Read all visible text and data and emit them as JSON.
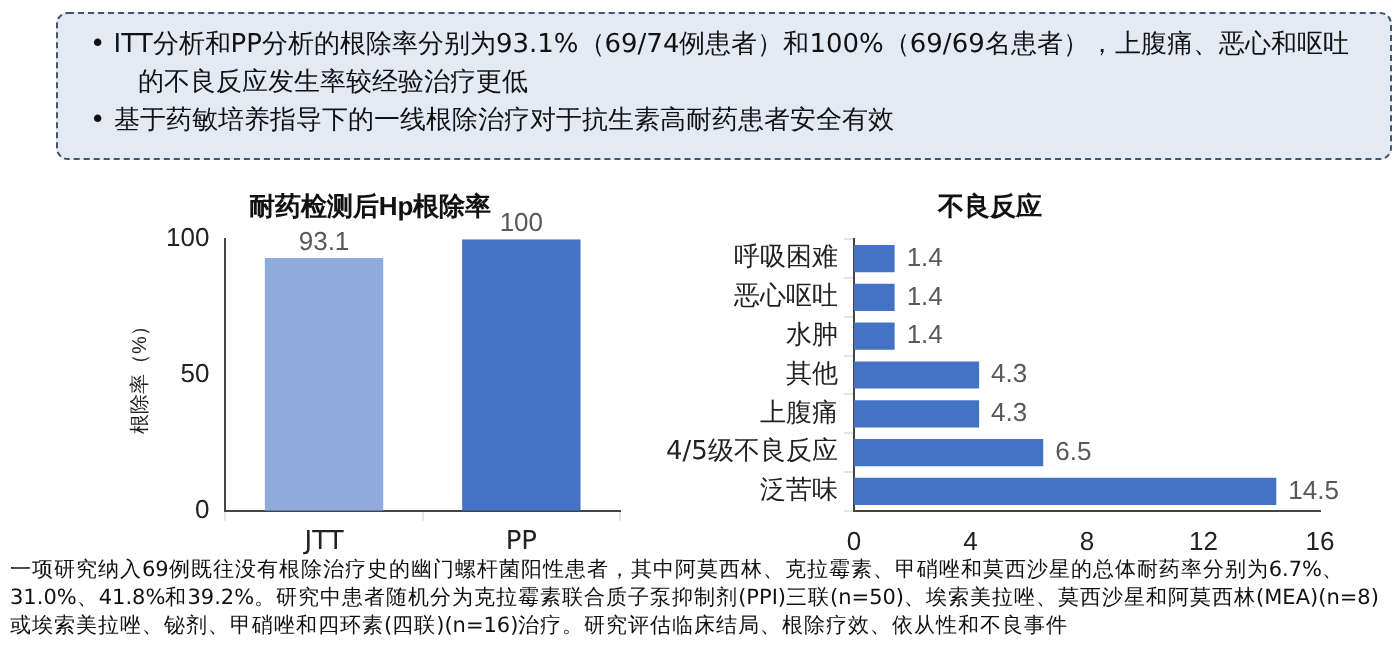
{
  "chart_data": [
    {
      "type": "bar",
      "title": "耐药检测后Hp根除率",
      "ylabel": "根除率（%）",
      "categories": [
        "JTT",
        "PP"
      ],
      "values": [
        93.1,
        100
      ],
      "colors": [
        "#8faadc",
        "#4472c4"
      ],
      "ylim": [
        0,
        100
      ],
      "yticks": [
        0,
        50,
        100
      ],
      "grid": false,
      "legend": false,
      "data_labels": true,
      "annotations": [
        "•  ITT分析和PP分析的根除率分别为93.1%（69/74例患者）和100%（69/69名患者），上腹痛、恶心和呕吐的不良反应发生率较经验治疗更低",
        "•  基于药敏培养指导下的一线根除治疗对于抗生素高耐药患者安全有效",
        "一项研究纳入69例既往没有根除治疗史的幽门螺杆菌阳性患者，其中阿莫西林、克拉霉素、甲硝唑和莫西沙星的总体耐药率分别为6.7%、31.0%、41.8%和39.2%。研究中患者随机分为克拉霉素联合质子泵抑制剂(PPI)三联(n=50)、埃索美拉唑、莫西沙星和阿莫西林(MEA)(n=8) 或埃索美拉唑、铋剂、甲硝唑和四环素(四联)(n=16)治疗。研究评估临床结局、根除疗效、依从性和不良事件"
      ]
    },
    {
      "type": "bar",
      "orientation": "horizontal",
      "title": "不良反应",
      "categories": [
        "呼吸困难",
        "恶心呕吐",
        "水肿",
        "其他",
        "上腹痛",
        "4/5级不良反应",
        "泛苦味"
      ],
      "values": [
        1.4,
        1.4,
        1.4,
        4.3,
        4.3,
        6.5,
        14.5
      ],
      "color": "#4472c4",
      "xlim": [
        0,
        16
      ],
      "xticks": [
        0,
        4,
        8,
        12,
        16
      ],
      "grid": false,
      "legend": false,
      "data_labels": true
    }
  ]
}
